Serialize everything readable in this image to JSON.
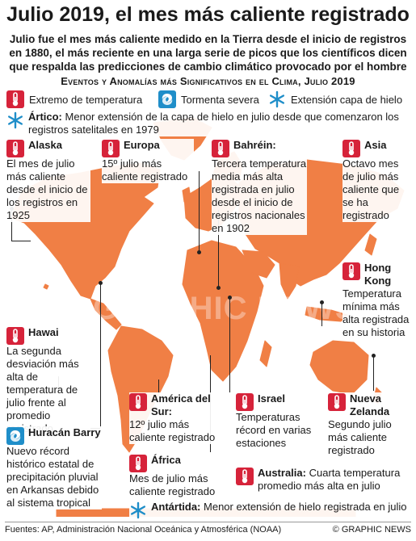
{
  "header": {
    "title": "Julio 2019, el mes más caliente registrado",
    "subtitle": "Julio fue el mes más caliente medido en la Tierra desde el inicio de registros en 1880, el más reciente en una larga serie de picos que los científicos dicen que respalda las predicciones de cambio climático provocado por el hombre",
    "section": "Eventos y Anomalías más Significativos en el Clima, Julio 2019"
  },
  "legend": {
    "temperature": {
      "label": "Extremo de temperatura",
      "icon": "thermometer-icon"
    },
    "storm": {
      "label": "Tormenta severa",
      "icon": "storm-icon"
    },
    "ice": {
      "label": "Extensión capa de hielo",
      "icon": "snowflake-icon"
    }
  },
  "colors": {
    "land": "#f07f45",
    "ocean": "#ffffff",
    "thermo": "#d6233a",
    "storm": "#1f8ec9",
    "ice": "#1f8ec9"
  },
  "events": {
    "artico": {
      "head": "Ártico:",
      "text": "Menor extensión de la capa de hielo en julio desde que comenzaron los registros satelitales en 1979"
    },
    "alaska": {
      "head": "Alaska",
      "text": "El mes de julio más caliente desde el inicio de los registros en 1925"
    },
    "europa": {
      "head": "Europa",
      "text": "15º julio más caliente registrado"
    },
    "bahrein": {
      "head": "Bahréin:",
      "text": "Tercera temperatura media más alta registrada en julio desde el inicio de registros nacionales en 1902"
    },
    "asia": {
      "head": "Asia",
      "text": "Octavo mes de julio más caliente que se ha registrado"
    },
    "hongkong": {
      "head": "Hong Kong",
      "text": "Temperatura mínima más alta registrada en su historia"
    },
    "hawai": {
      "head": "Hawai",
      "text": "La segunda desviación más alta de temperatura de julio frente al promedio registrado"
    },
    "sudamerica": {
      "head": "América del Sur:",
      "text": "12º julio más caliente registrado"
    },
    "israel": {
      "head": "Israel",
      "text": "Temperaturas récord en varias estaciones"
    },
    "nuevazelanda": {
      "head": "Nueva Zelanda",
      "text": "Segundo julio más caliente registrado"
    },
    "barry": {
      "head": "Huracán Barry",
      "text": "Nuevo récord histórico estatal de precipitación pluvial en Arkansas debido al sistema tropical"
    },
    "africa": {
      "head": "África",
      "text": "Mes de julio más caliente registrado"
    },
    "australia": {
      "head": "Australia:",
      "text": "Cuarta temperatura promedio más alta en julio"
    },
    "antartida": {
      "head": "Antártida:",
      "text": "Menor extensión de hielo registrada en julio"
    }
  },
  "watermark": "GRAPHIC NEWS",
  "footer": {
    "sources": "Fuentes: AP, Administración Nacional Oceánica y Atmosférica (NOAA)",
    "credit": "© GRAPHIC NEWS"
  }
}
